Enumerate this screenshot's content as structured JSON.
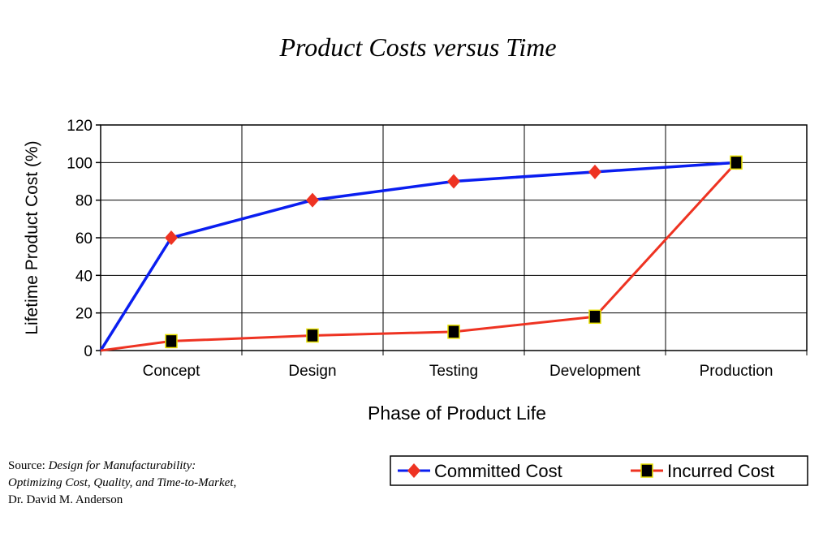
{
  "chart_data": {
    "type": "line",
    "title": "Product Costs versus Time",
    "xlabel": "Phase of Product Life",
    "ylabel": "Lifetime Product Cost (%)",
    "categories": [
      "Concept",
      "Design",
      "Testing",
      "Development",
      "Production"
    ],
    "ylim": [
      0,
      120
    ],
    "yticks": [
      0,
      20,
      40,
      60,
      80,
      100,
      120
    ],
    "grid": true,
    "origin_point": 0,
    "legend_position": "bottom-right",
    "series": [
      {
        "name": "Committed Cost",
        "values": [
          60,
          80,
          90,
          95,
          100
        ],
        "color": "#0a1ef0",
        "marker": "diamond",
        "marker_color": "#ee3322"
      },
      {
        "name": "Incurred Cost",
        "values": [
          5,
          8,
          10,
          18,
          100
        ],
        "color": "#ee3322",
        "marker": "square",
        "marker_color": "#000000",
        "marker_edge": "#e8e000"
      }
    ]
  },
  "source": {
    "prefix": "Source: ",
    "book_line1": "Design for Manufacturability:",
    "book_line2": "Optimizing Cost, Quality, and Time-to-Market",
    "comma": ",",
    "author": "Dr. David M. Anderson"
  }
}
